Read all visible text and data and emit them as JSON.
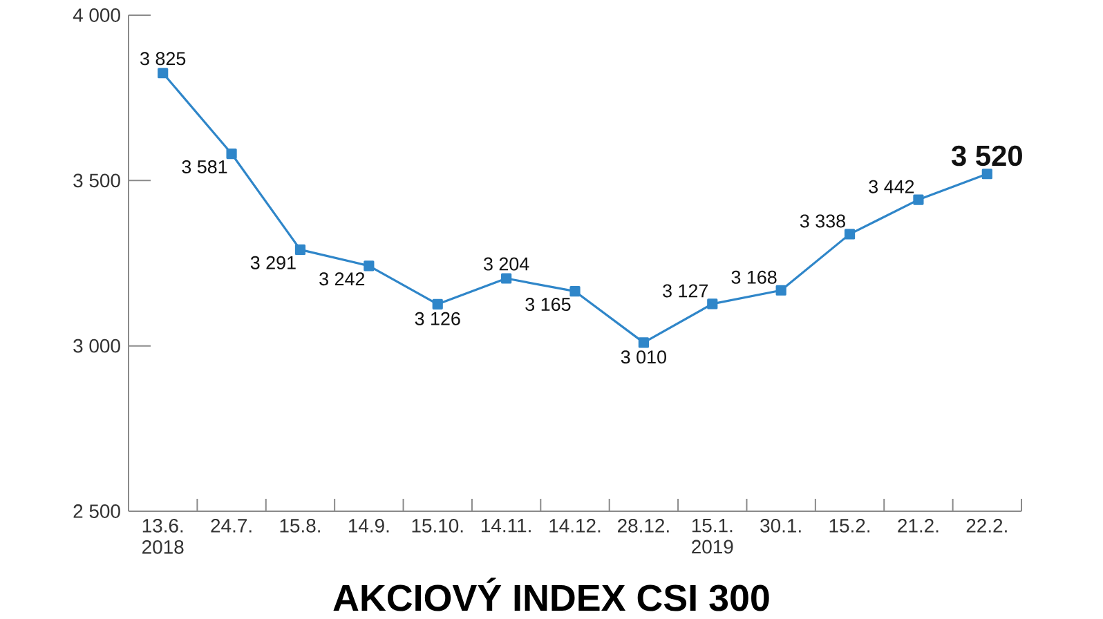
{
  "chart_data": {
    "type": "line",
    "title": "AKCIOVÝ INDEX CSI 300",
    "categories": [
      "13.6. 2018",
      "24.7.",
      "15.8.",
      "14.9.",
      "15.10.",
      "14.11.",
      "14.12.",
      "28.12.",
      "15.1. 2019",
      "30.1.",
      "15.2.",
      "21.2.",
      "22.2."
    ],
    "series": [
      {
        "color": "#2f86c9",
        "values": [
          3825,
          3581,
          3291,
          3242,
          3126,
          3204,
          3165,
          3010,
          3127,
          3168,
          3338,
          3442,
          3520
        ],
        "value_labels": [
          "3 825",
          "3 581",
          "3 291",
          "3 242",
          "3 126",
          "3 204",
          "3 165",
          "3 010",
          "3 127",
          "3 168",
          "3 338",
          "3 442",
          "3 520"
        ]
      }
    ],
    "ylim": [
      2500,
      4000
    ],
    "yticks": [
      {
        "value": 2500,
        "label": "2 500"
      },
      {
        "value": 3000,
        "label": "3 000"
      },
      {
        "value": 3500,
        "label": "3 500"
      },
      {
        "value": 4000,
        "label": "4 000"
      }
    ],
    "marker": "square",
    "line_style": "solid"
  }
}
